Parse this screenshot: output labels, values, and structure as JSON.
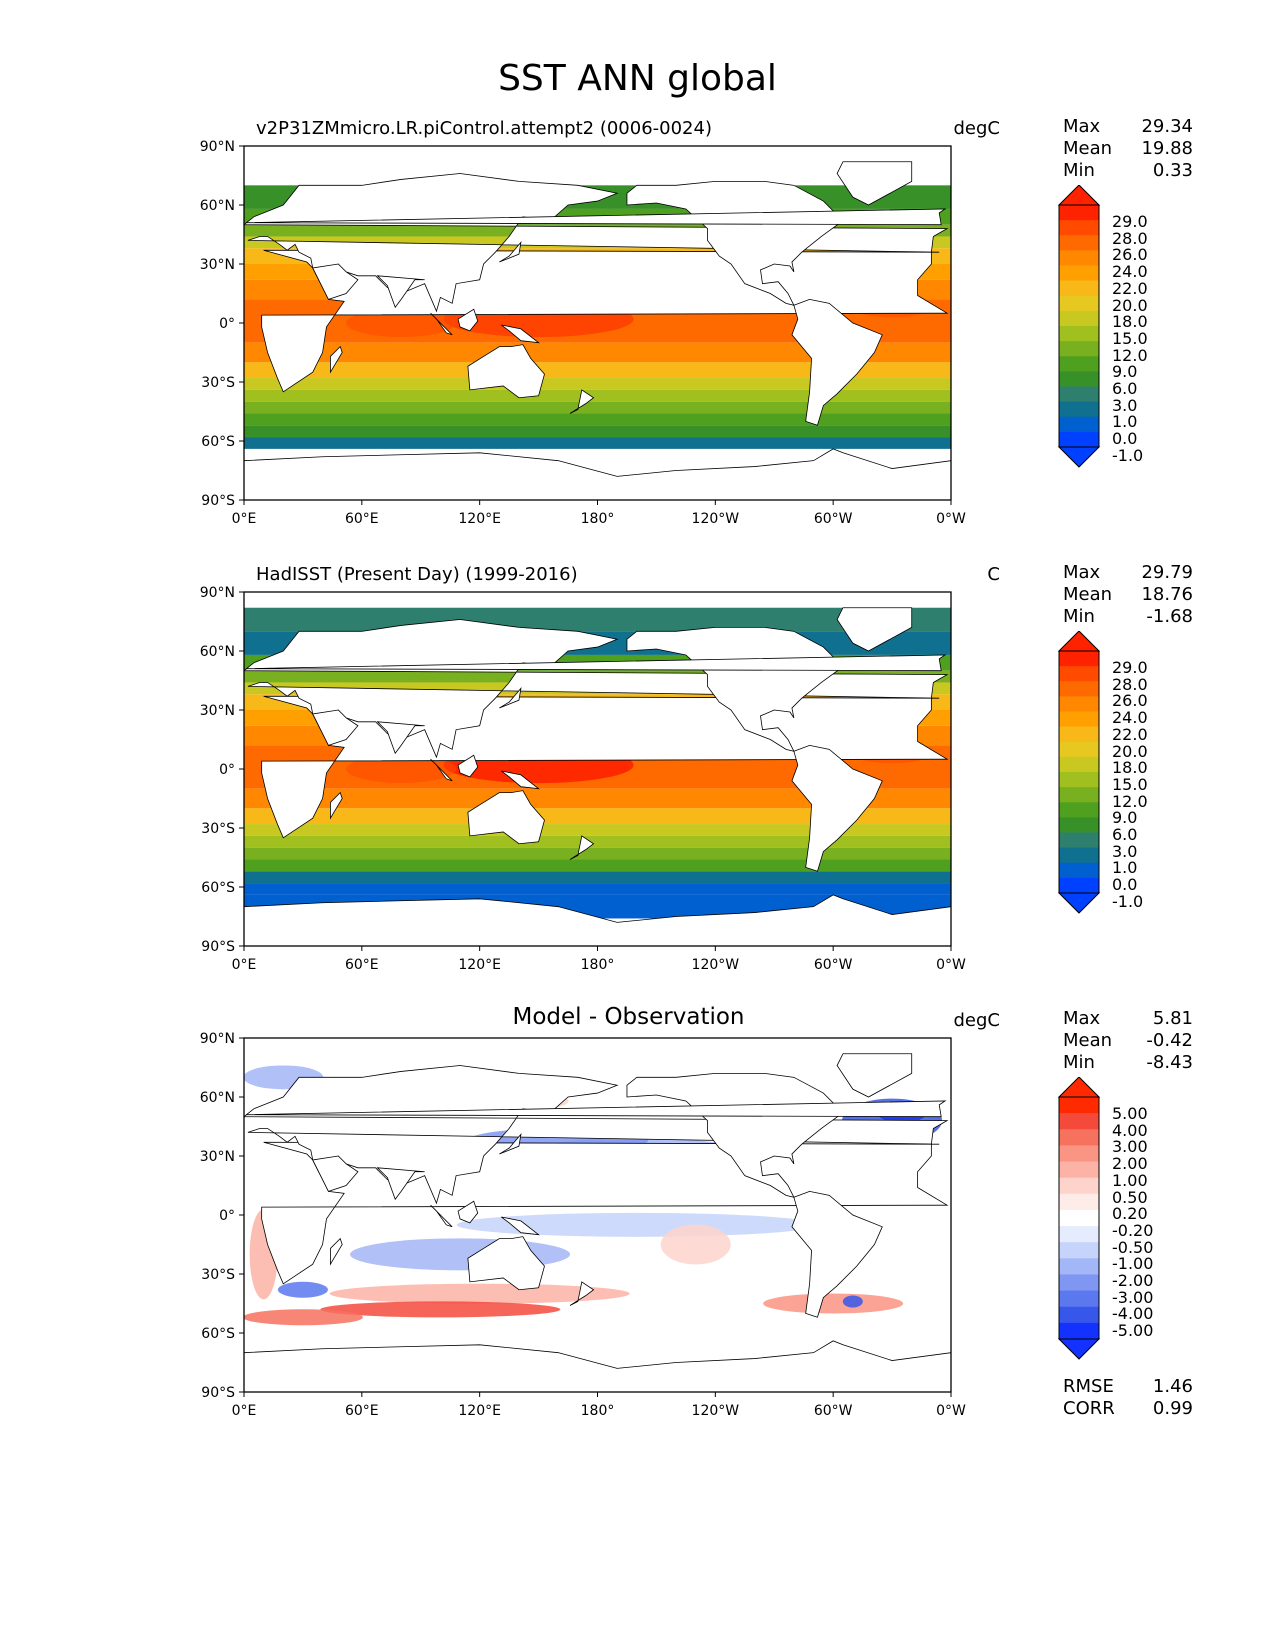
{
  "figure": {
    "title": "SST ANN global"
  },
  "axes": {
    "lat_ticks": [
      "90°N",
      "60°N",
      "30°N",
      "0°",
      "30°S",
      "60°S",
      "90°S"
    ],
    "lon_ticks": [
      "0°E",
      "60°E",
      "120°E",
      "180°",
      "120°W",
      "60°W",
      "0°W"
    ]
  },
  "panels": [
    {
      "title": "v2P31ZMmicro.LR.piControl.attempt2 (0006-0024)",
      "units": "degC",
      "stats": [
        {
          "label": "Max",
          "value": "29.34"
        },
        {
          "label": "Mean",
          "value": "19.88"
        },
        {
          "label": "Min",
          "value": "0.33"
        }
      ]
    },
    {
      "title": "HadISST (Present Day) (1999-2016)",
      "units": "C",
      "stats": [
        {
          "label": "Max",
          "value": "29.79"
        },
        {
          "label": "Mean",
          "value": "18.76"
        },
        {
          "label": "Min",
          "value": "-1.68"
        }
      ]
    },
    {
      "title": "Model - Observation",
      "units": "degC",
      "stats": [
        {
          "label": "Max",
          "value": "5.81"
        },
        {
          "label": "Mean",
          "value": "-0.42"
        },
        {
          "label": "Min",
          "value": "-8.43"
        }
      ],
      "bottom_stats": [
        {
          "label": "RMSE",
          "value": "1.46"
        },
        {
          "label": "CORR",
          "value": "0.99"
        }
      ]
    }
  ],
  "colorbars": {
    "sst": {
      "labels": [
        "29.0",
        "28.0",
        "26.0",
        "24.0",
        "22.0",
        "20.0",
        "18.0",
        "15.0",
        "12.0",
        "9.0",
        "6.0",
        "3.0",
        "1.0",
        "0.0",
        "-1.0"
      ],
      "colors": [
        "#ff2200",
        "#ff4a00",
        "#ff6a00",
        "#ff8800",
        "#ffa000",
        "#f7b818",
        "#e6c820",
        "#c8c820",
        "#a0c020",
        "#78b020",
        "#50a020",
        "#389028",
        "#2e7f6e",
        "#10708f",
        "#0060d0",
        "#0040ff"
      ]
    },
    "diff": {
      "labels": [
        "5.00",
        "4.00",
        "3.00",
        "2.00",
        "1.00",
        "0.50",
        "0.20",
        "-0.20",
        "-0.50",
        "-1.00",
        "-2.00",
        "-3.00",
        "-4.00",
        "-5.00"
      ],
      "colors": [
        "#ff2a00",
        "#f44a3c",
        "#f7715f",
        "#fa9483",
        "#fcb3a6",
        "#fdd3cb",
        "#feece8",
        "#ffffff",
        "#e4ecfd",
        "#c6d3fb",
        "#a3b6f7",
        "#7f97f2",
        "#5b78ee",
        "#3657ea",
        "#1432ff"
      ]
    }
  }
}
